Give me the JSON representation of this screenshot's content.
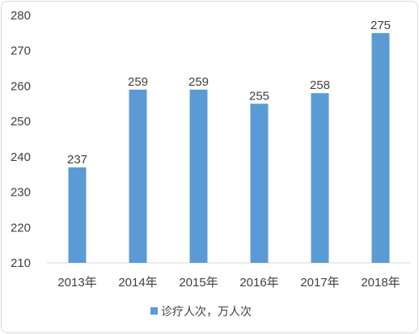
{
  "chart_data": {
    "type": "bar",
    "categories": [
      "2013年",
      "2014年",
      "2015年",
      "2016年",
      "2017年",
      "2018年"
    ],
    "series": [
      {
        "name": "诊疗人次，万人次",
        "values": [
          237,
          259,
          259,
          255,
          258,
          275
        ]
      }
    ],
    "ylim": [
      210,
      280
    ],
    "yticks": [
      210,
      220,
      230,
      240,
      250,
      260,
      270,
      280
    ],
    "grid": false,
    "legend": "bottom",
    "colors": {
      "bar": "#5b9bd5",
      "axis": "#d9d9d9",
      "text": "#404040"
    }
  }
}
